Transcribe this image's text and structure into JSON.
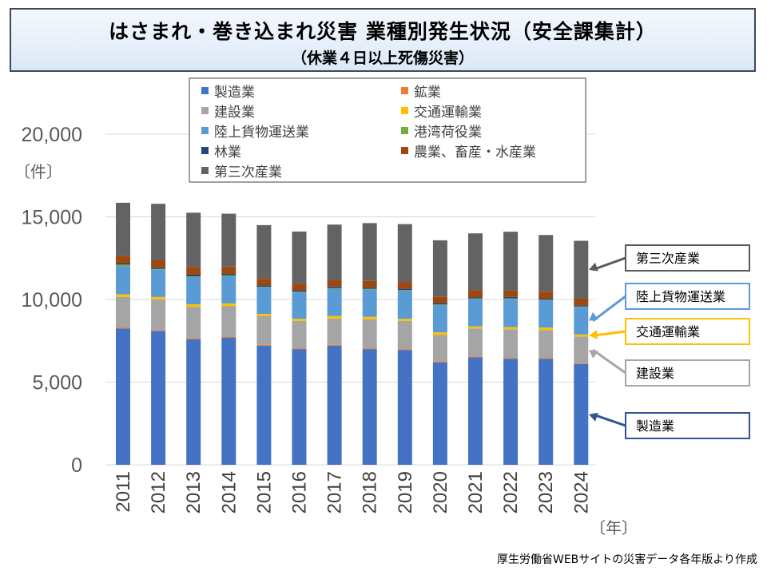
{
  "title": "はさまれ・巻き込まれ災害 業種別発生状況（安全課集計）",
  "subtitle": "（休業４日以上死傷災害）",
  "footer": "厚生労働省WEBサイトの災害データ各年版より作成",
  "chart_data": {
    "type": "bar",
    "stacked": true,
    "ylabel": "〔件〕",
    "xlabel": "〔年〕",
    "ylim": [
      0,
      20000
    ],
    "yticks": [
      "0",
      "5,000",
      "10,000",
      "15,000",
      "20,000"
    ],
    "categories": [
      "2011",
      "2012",
      "2013",
      "2014",
      "2015",
      "2016",
      "2017",
      "2018",
      "2019",
      "2020",
      "2021",
      "2022",
      "2023",
      "2024"
    ],
    "series": [
      {
        "name": "製造業",
        "color": "#4472c4",
        "values": [
          8250,
          8100,
          7600,
          7700,
          7200,
          7000,
          7200,
          7000,
          6950,
          6200,
          6500,
          6400,
          6400,
          6100
        ]
      },
      {
        "name": "鉱業",
        "color": "#ed7d31",
        "values": [
          60,
          50,
          60,
          60,
          50,
          50,
          50,
          50,
          50,
          50,
          50,
          50,
          50,
          50
        ]
      },
      {
        "name": "建設業",
        "color": "#a5a5a5",
        "values": [
          1850,
          1850,
          1900,
          1850,
          1750,
          1650,
          1600,
          1750,
          1700,
          1600,
          1700,
          1750,
          1700,
          1600
        ]
      },
      {
        "name": "交通運輸業",
        "color": "#ffc000",
        "values": [
          150,
          150,
          150,
          150,
          130,
          130,
          150,
          150,
          130,
          160,
          120,
          130,
          150,
          130
        ]
      },
      {
        "name": "陸上貨物運送業",
        "color": "#5b9bd5",
        "values": [
          1700,
          1650,
          1650,
          1650,
          1600,
          1600,
          1650,
          1650,
          1700,
          1650,
          1650,
          1700,
          1650,
          1650
        ]
      },
      {
        "name": "港湾荷役業",
        "color": "#70ad47",
        "values": [
          100,
          50,
          40,
          40,
          30,
          40,
          40,
          40,
          50,
          40,
          40,
          40,
          40,
          40
        ]
      },
      {
        "name": "林業",
        "color": "#264478",
        "values": [
          90,
          90,
          100,
          90,
          90,
          90,
          90,
          80,
          80,
          80,
          80,
          80,
          80,
          80
        ]
      },
      {
        "name": "農業、畜産・水産業",
        "color": "#9e480e",
        "values": [
          450,
          450,
          450,
          450,
          400,
          400,
          400,
          400,
          400,
          400,
          420,
          400,
          400,
          400
        ]
      },
      {
        "name": "第三次産業",
        "color": "#636363",
        "values": [
          3200,
          3400,
          3300,
          3200,
          3250,
          3150,
          3350,
          3500,
          3500,
          3400,
          3440,
          3550,
          3430,
          3500
        ]
      }
    ],
    "legend_placement": "top",
    "annotations": [
      {
        "label": "第三次産業",
        "series": 8,
        "color": "#595959"
      },
      {
        "label": "陸上貨物運送業",
        "series": 4,
        "color": "#5b9bd5"
      },
      {
        "label": "交通運輸業",
        "series": 3,
        "color": "#ffc000"
      },
      {
        "label": "建設業",
        "series": 2,
        "color": "#a5a5a5"
      },
      {
        "label": "製造業",
        "series": 0,
        "color": "#2f5597"
      }
    ]
  }
}
